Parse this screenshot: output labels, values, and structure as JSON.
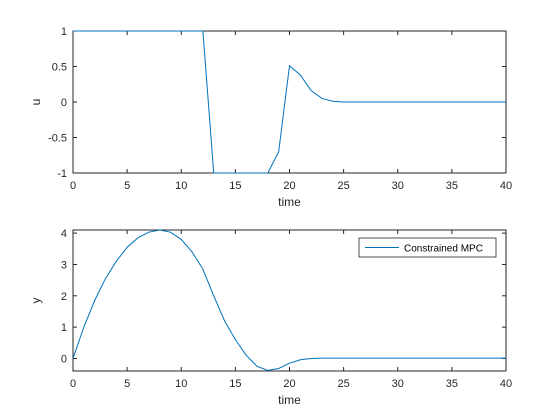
{
  "chart_data": [
    {
      "type": "line",
      "xlabel": "time",
      "ylabel": "u",
      "xlim": [
        0,
        40
      ],
      "ylim": [
        -1,
        1
      ],
      "xticks": [
        0,
        5,
        10,
        15,
        20,
        25,
        30,
        35,
        40
      ],
      "yticks": [
        -1,
        -0.5,
        0,
        0.5,
        1
      ],
      "ytick_labels": [
        "-1",
        "-0.5",
        "0",
        "0.5",
        "1"
      ],
      "grid": false,
      "color": "#0072BD",
      "series": [
        {
          "x": [
            0,
            1,
            2,
            3,
            4,
            5,
            6,
            7,
            8,
            9,
            10,
            11,
            12,
            13,
            14,
            15,
            16,
            17,
            18,
            19,
            20,
            21,
            22,
            23,
            24,
            25,
            26,
            27,
            28,
            29,
            30,
            31,
            32,
            33,
            34,
            35,
            36,
            37,
            38,
            39,
            40
          ],
          "values": [
            1,
            1,
            1,
            1,
            1,
            1,
            1,
            1,
            1,
            1,
            1,
            1,
            1,
            -1,
            -1,
            -1,
            -1,
            -1,
            -1,
            -0.7,
            0.51,
            0.38,
            0.16,
            0.05,
            0.01,
            0,
            0,
            0,
            0,
            0,
            0,
            0,
            0,
            0,
            0,
            0,
            0,
            0,
            0,
            0,
            0
          ]
        }
      ]
    },
    {
      "type": "line",
      "xlabel": "time",
      "ylabel": "y",
      "xlim": [
        0,
        40
      ],
      "ylim": [
        -0.4,
        4.1
      ],
      "xticks": [
        0,
        5,
        10,
        15,
        20,
        25,
        30,
        35,
        40
      ],
      "yticks": [
        0,
        1,
        2,
        3,
        4
      ],
      "ytick_labels": [
        "0",
        "1",
        "2",
        "3",
        "4"
      ],
      "grid": false,
      "color": "#0072BD",
      "legend": "top-right",
      "series": [
        {
          "name": "Constrained MPC",
          "x": [
            0,
            1,
            2,
            3,
            4,
            5,
            6,
            7,
            8,
            9,
            10,
            11,
            12,
            13,
            14,
            15,
            16,
            17,
            18,
            19,
            20,
            21,
            22,
            23,
            24,
            25,
            26,
            27,
            28,
            29,
            30,
            31,
            32,
            33,
            34,
            35,
            36,
            37,
            38,
            39,
            40
          ],
          "values": [
            0,
            1,
            1.85,
            2.55,
            3.1,
            3.55,
            3.85,
            4.03,
            4.1,
            4.03,
            3.8,
            3.4,
            2.85,
            2.0,
            1.2,
            0.6,
            0.1,
            -0.25,
            -0.38,
            -0.32,
            -0.15,
            -0.04,
            0,
            0.01,
            0.01,
            0.01,
            0.01,
            0.01,
            0.01,
            0.01,
            0.01,
            0.01,
            0.01,
            0.01,
            0.01,
            0.01,
            0.01,
            0.01,
            0.01,
            0.01,
            0.01
          ]
        }
      ]
    }
  ]
}
